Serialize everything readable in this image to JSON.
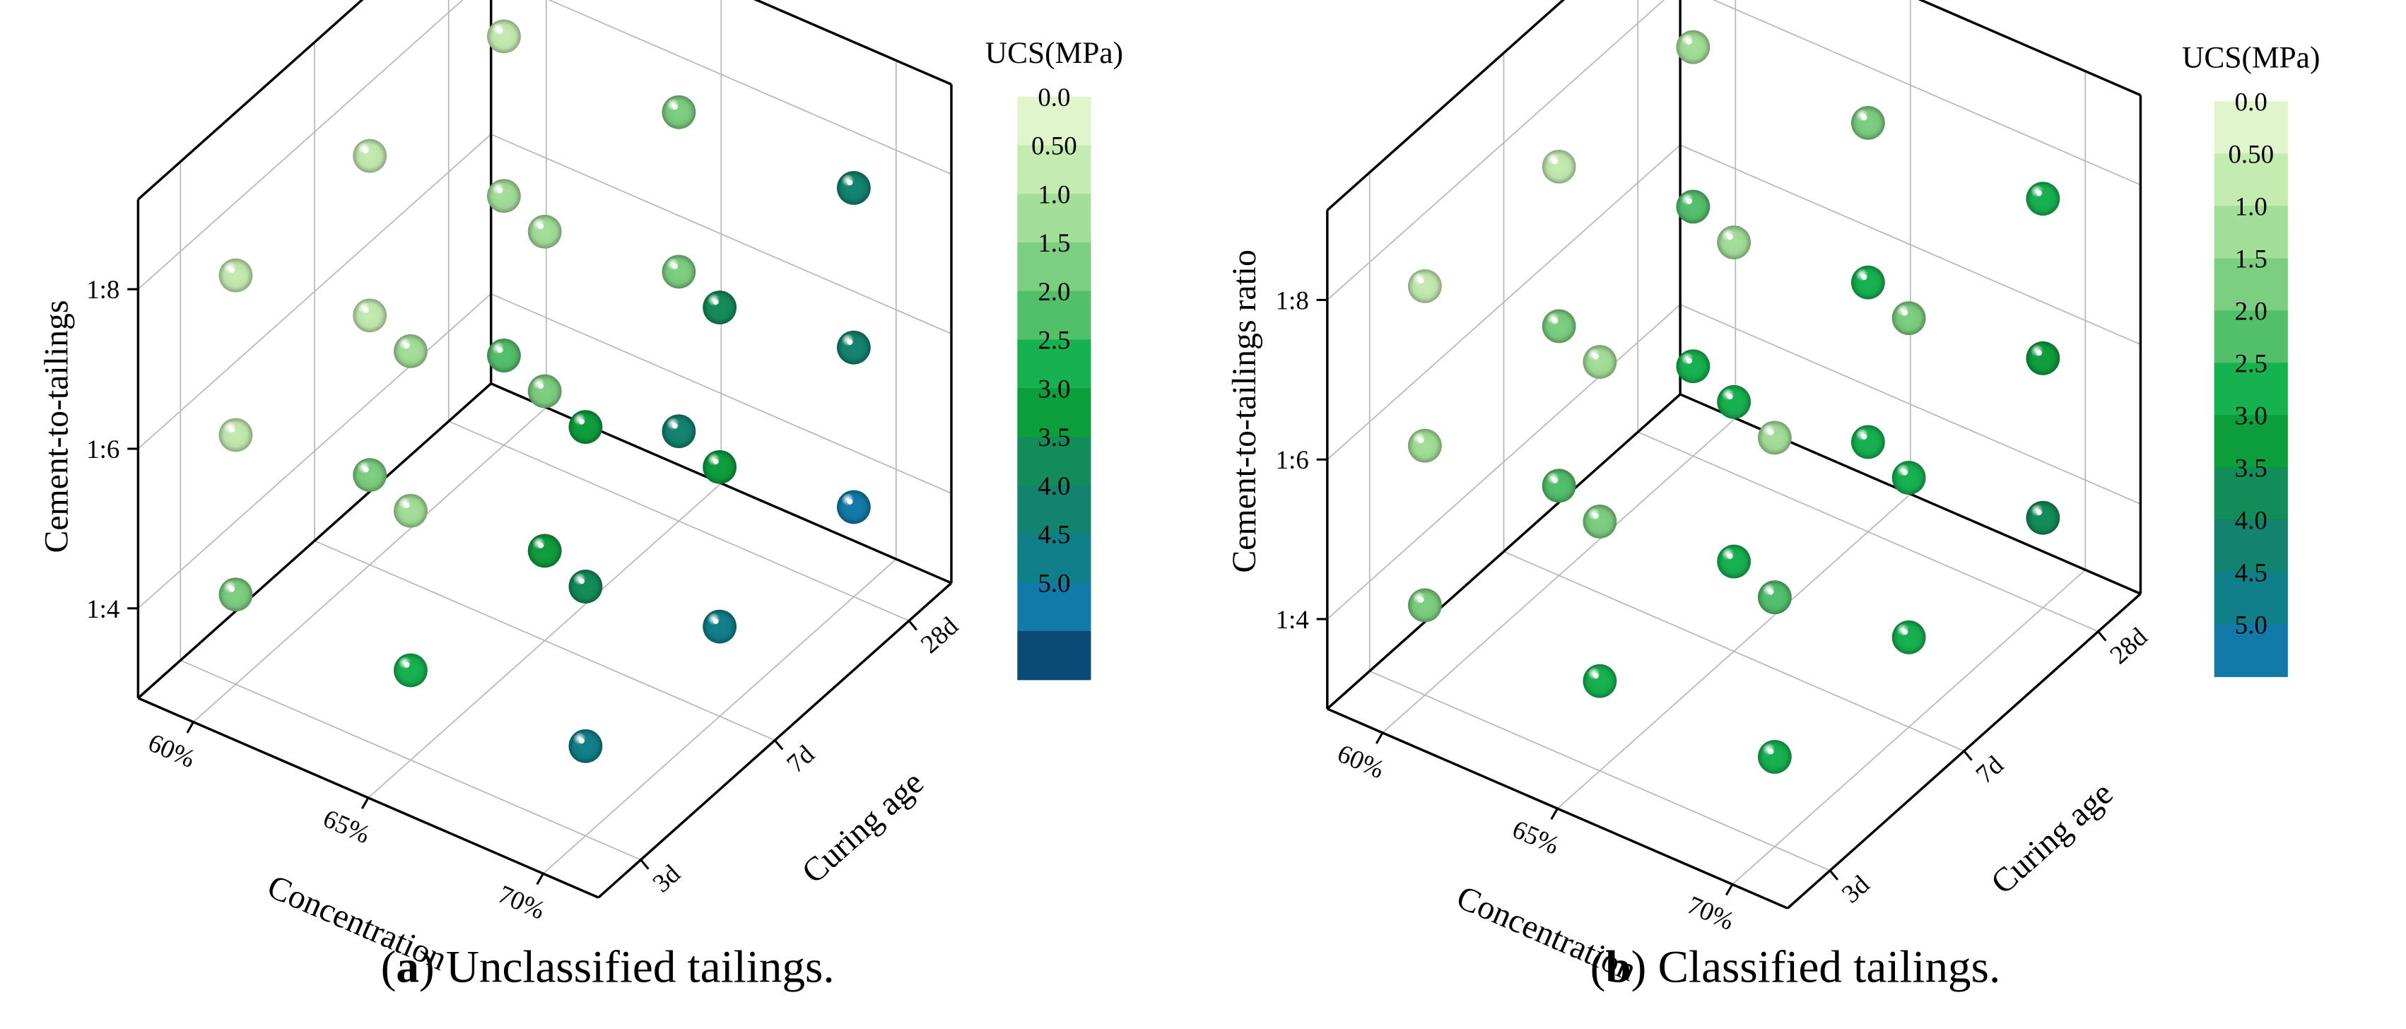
{
  "chart_data": [
    {
      "type": "scatter3d",
      "panel": "a",
      "caption_letter": "a",
      "caption_text": "Unclassified tailings.",
      "xlabel": "Concentration",
      "ylabel": "Curing age",
      "zlabel": "Cement-to-tailings",
      "x_ticks": [
        "60%",
        "65%",
        "70%"
      ],
      "y_ticks": [
        "3d",
        "7d",
        "28d"
      ],
      "z_ticks": [
        "1:4",
        "1:6",
        "1:8"
      ],
      "colorbar": {
        "title": "UCS(MPa)",
        "ticks": [
          "0.0",
          "0.50",
          "1.0",
          "1.5",
          "2.0",
          "2.5",
          "3.0",
          "3.5",
          "4.0",
          "4.5",
          "5.0"
        ],
        "colors": [
          "#e1f5cc",
          "#c4ebb0",
          "#a3df98",
          "#7ccf80",
          "#52c06b",
          "#15b24f",
          "#0d9e3c",
          "#128c58",
          "#11836f",
          "#0f7f8a",
          "#127aa8",
          "#0b4a75"
        ]
      },
      "points": [
        {
          "concentration": "60%",
          "curing_age": "3d",
          "ratio": "1:4",
          "ucs": 1.5
        },
        {
          "concentration": "65%",
          "curing_age": "3d",
          "ratio": "1:4",
          "ucs": 2.5
        },
        {
          "concentration": "70%",
          "curing_age": "3d",
          "ratio": "1:4",
          "ucs": 4.5
        },
        {
          "concentration": "60%",
          "curing_age": "7d",
          "ratio": "1:4",
          "ucs": 1.5
        },
        {
          "concentration": "65%",
          "curing_age": "7d",
          "ratio": "1:4",
          "ucs": 3.0
        },
        {
          "concentration": "70%",
          "curing_age": "7d",
          "ratio": "1:4",
          "ucs": 4.5
        },
        {
          "concentration": "60%",
          "curing_age": "28d",
          "ratio": "1:4",
          "ucs": 2.0
        },
        {
          "concentration": "65%",
          "curing_age": "28d",
          "ratio": "1:4",
          "ucs": 4.0
        },
        {
          "concentration": "70%",
          "curing_age": "28d",
          "ratio": "1:4",
          "ucs": 5.0
        },
        {
          "concentration": "60%",
          "curing_age": "3d",
          "ratio": "1:6",
          "ucs": 0.5
        },
        {
          "concentration": "65%",
          "curing_age": "3d",
          "ratio": "1:6",
          "ucs": 1.0
        },
        {
          "concentration": "70%",
          "curing_age": "3d",
          "ratio": "1:6",
          "ucs": 3.5
        },
        {
          "concentration": "60%",
          "curing_age": "7d",
          "ratio": "1:6",
          "ucs": 0.5
        },
        {
          "concentration": "65%",
          "curing_age": "7d",
          "ratio": "1:6",
          "ucs": 1.5
        },
        {
          "concentration": "70%",
          "curing_age": "7d",
          "ratio": "1:6",
          "ucs": 3.0
        },
        {
          "concentration": "60%",
          "curing_age": "28d",
          "ratio": "1:6",
          "ucs": 1.0
        },
        {
          "concentration": "65%",
          "curing_age": "28d",
          "ratio": "1:6",
          "ucs": 1.5
        },
        {
          "concentration": "70%",
          "curing_age": "28d",
          "ratio": "1:6",
          "ucs": 4.0
        },
        {
          "concentration": "60%",
          "curing_age": "3d",
          "ratio": "1:8",
          "ucs": 0.5
        },
        {
          "concentration": "65%",
          "curing_age": "3d",
          "ratio": "1:8",
          "ucs": 1.0
        },
        {
          "concentration": "70%",
          "curing_age": "3d",
          "ratio": "1:8",
          "ucs": 3.0
        },
        {
          "concentration": "60%",
          "curing_age": "7d",
          "ratio": "1:8",
          "ucs": 0.5
        },
        {
          "concentration": "65%",
          "curing_age": "7d",
          "ratio": "1:8",
          "ucs": 1.0
        },
        {
          "concentration": "70%",
          "curing_age": "7d",
          "ratio": "1:8",
          "ucs": 3.5
        },
        {
          "concentration": "60%",
          "curing_age": "28d",
          "ratio": "1:8",
          "ucs": 0.5
        },
        {
          "concentration": "65%",
          "curing_age": "28d",
          "ratio": "1:8",
          "ucs": 1.5
        },
        {
          "concentration": "70%",
          "curing_age": "28d",
          "ratio": "1:8",
          "ucs": 4.0
        }
      ]
    },
    {
      "type": "scatter3d",
      "panel": "b",
      "caption_letter": "b",
      "caption_text": "Classified tailings.",
      "xlabel": "Concentration",
      "ylabel": "Curing age",
      "zlabel": "Cement-to-tailings ratio",
      "x_ticks": [
        "60%",
        "65%",
        "70%"
      ],
      "y_ticks": [
        "3d",
        "7d",
        "28d"
      ],
      "z_ticks": [
        "1:4",
        "1:6",
        "1:8"
      ],
      "colorbar": {
        "title": "UCS(MPa)",
        "ticks": [
          "0.0",
          "0.50",
          "1.0",
          "1.5",
          "2.0",
          "2.5",
          "3.0",
          "3.5",
          "4.0",
          "4.5",
          "5.0"
        ],
        "colors": [
          "#e1f5cc",
          "#c4ebb0",
          "#a3df98",
          "#7ccf80",
          "#52c06b",
          "#15b24f",
          "#0d9e3c",
          "#128c58",
          "#11836f",
          "#0f7f8a",
          "#127aa8"
        ]
      },
      "points": [
        {
          "concentration": "60%",
          "curing_age": "3d",
          "ratio": "1:4",
          "ucs": 1.5
        },
        {
          "concentration": "65%",
          "curing_age": "3d",
          "ratio": "1:4",
          "ucs": 2.5
        },
        {
          "concentration": "70%",
          "curing_age": "3d",
          "ratio": "1:4",
          "ucs": 2.5
        },
        {
          "concentration": "60%",
          "curing_age": "7d",
          "ratio": "1:4",
          "ucs": 2.0
        },
        {
          "concentration": "65%",
          "curing_age": "7d",
          "ratio": "1:4",
          "ucs": 2.5
        },
        {
          "concentration": "70%",
          "curing_age": "7d",
          "ratio": "1:4",
          "ucs": 2.5
        },
        {
          "concentration": "60%",
          "curing_age": "28d",
          "ratio": "1:4",
          "ucs": 2.5
        },
        {
          "concentration": "65%",
          "curing_age": "28d",
          "ratio": "1:4",
          "ucs": 2.5
        },
        {
          "concentration": "70%",
          "curing_age": "28d",
          "ratio": "1:4",
          "ucs": 3.5
        },
        {
          "concentration": "60%",
          "curing_age": "3d",
          "ratio": "1:6",
          "ucs": 1.0
        },
        {
          "concentration": "65%",
          "curing_age": "3d",
          "ratio": "1:6",
          "ucs": 1.5
        },
        {
          "concentration": "70%",
          "curing_age": "3d",
          "ratio": "1:6",
          "ucs": 2.0
        },
        {
          "concentration": "60%",
          "curing_age": "7d",
          "ratio": "1:6",
          "ucs": 1.5
        },
        {
          "concentration": "65%",
          "curing_age": "7d",
          "ratio": "1:6",
          "ucs": 2.5
        },
        {
          "concentration": "70%",
          "curing_age": "7d",
          "ratio": "1:6",
          "ucs": 2.5
        },
        {
          "concentration": "60%",
          "curing_age": "28d",
          "ratio": "1:6",
          "ucs": 2.0
        },
        {
          "concentration": "65%",
          "curing_age": "28d",
          "ratio": "1:6",
          "ucs": 2.5
        },
        {
          "concentration": "70%",
          "curing_age": "28d",
          "ratio": "1:6",
          "ucs": 3.0
        },
        {
          "concentration": "60%",
          "curing_age": "3d",
          "ratio": "1:8",
          "ucs": 0.5
        },
        {
          "concentration": "65%",
          "curing_age": "3d",
          "ratio": "1:8",
          "ucs": 1.0
        },
        {
          "concentration": "70%",
          "curing_age": "3d",
          "ratio": "1:8",
          "ucs": 1.0
        },
        {
          "concentration": "60%",
          "curing_age": "7d",
          "ratio": "1:8",
          "ucs": 0.5
        },
        {
          "concentration": "65%",
          "curing_age": "7d",
          "ratio": "1:8",
          "ucs": 1.0
        },
        {
          "concentration": "70%",
          "curing_age": "7d",
          "ratio": "1:8",
          "ucs": 1.5
        },
        {
          "concentration": "60%",
          "curing_age": "28d",
          "ratio": "1:8",
          "ucs": 1.0
        },
        {
          "concentration": "65%",
          "curing_age": "28d",
          "ratio": "1:8",
          "ucs": 1.5
        },
        {
          "concentration": "70%",
          "curing_age": "28d",
          "ratio": "1:8",
          "ucs": 2.5
        }
      ]
    }
  ]
}
